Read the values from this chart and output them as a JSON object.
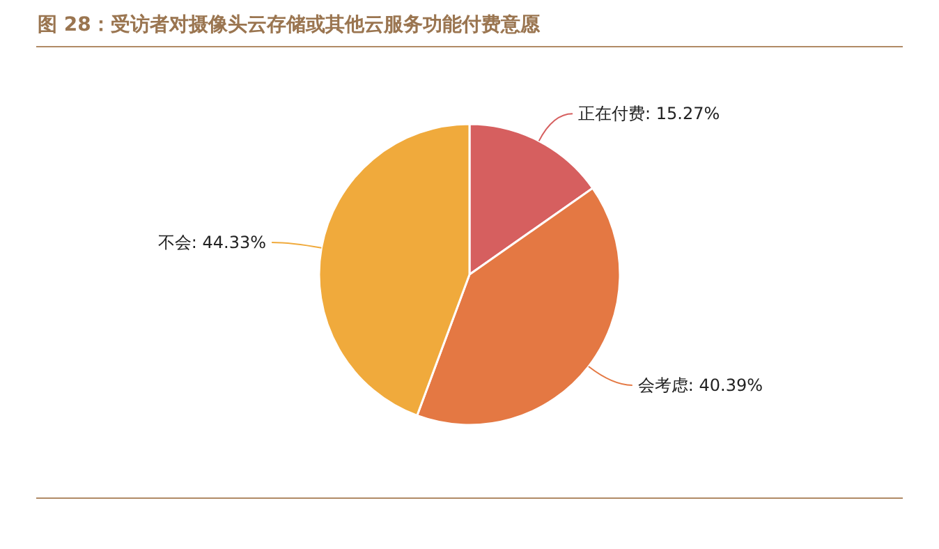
{
  "chart_data": {
    "type": "pie",
    "title": "图 28：受访者对摄像头云存储或其他云服务功能付费意愿",
    "categories": [
      "正在付费",
      "会考虑",
      "不会"
    ],
    "values": [
      15.27,
      40.39,
      44.33
    ],
    "value_labels": [
      "15.27%",
      "40.39%",
      "44.33%"
    ],
    "colors": [
      "#d65f5f",
      "#e47843",
      "#f0aa3c"
    ]
  }
}
